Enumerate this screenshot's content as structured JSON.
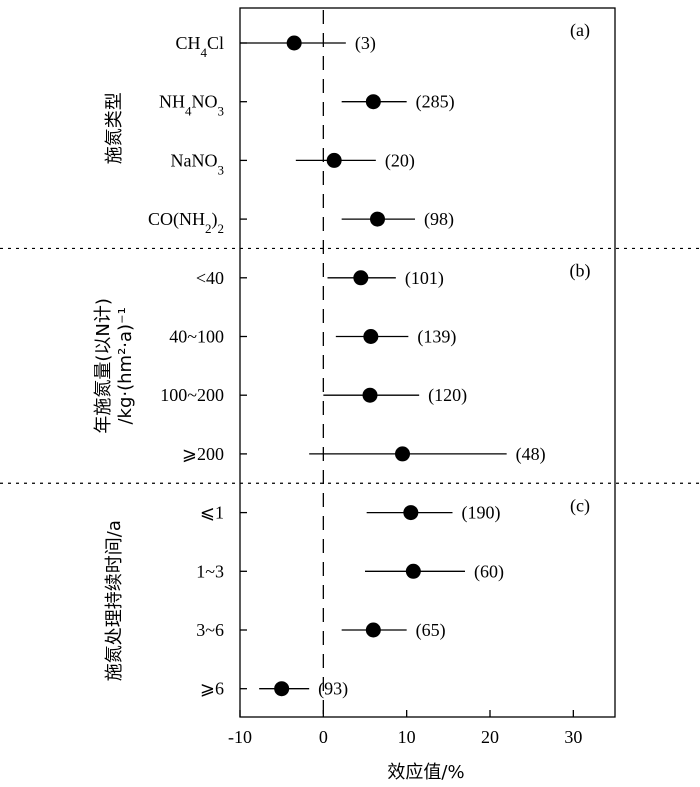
{
  "chart_data": {
    "type": "forest",
    "xlabel": "效应值/%",
    "xlim": [
      -10,
      35
    ],
    "xticks": [
      -10,
      0,
      10,
      20,
      30
    ],
    "reference_line": 0,
    "panels": [
      {
        "tag": "(a)",
        "group_label": "施氮类型",
        "group_label_lines": [
          "施氮类型"
        ],
        "rows": [
          {
            "label": "CH4Cl",
            "mean": -3.5,
            "low": -10,
            "high": 2.7,
            "n": "(3)"
          },
          {
            "label": "NH4NO3",
            "mean": 6.0,
            "low": 2.2,
            "high": 10.0,
            "n": "(285)"
          },
          {
            "label": "NaNO3",
            "mean": 1.3,
            "low": -3.3,
            "high": 6.3,
            "n": "(20)"
          },
          {
            "label": "CO(NH2)2",
            "mean": 6.5,
            "low": 2.2,
            "high": 11.0,
            "n": "(98)"
          }
        ]
      },
      {
        "tag": "(b)",
        "group_label": "年施氮量(以N计)/kg·(hm²·a)⁻¹",
        "group_label_lines": [
          "年施氮量(以N计)",
          "/kg·(hm²·a)⁻¹"
        ],
        "rows": [
          {
            "label": "<40",
            "mean": 4.5,
            "low": 0.5,
            "high": 8.7,
            "n": "(101)"
          },
          {
            "label": "40~100",
            "mean": 5.7,
            "low": 1.5,
            "high": 10.2,
            "n": "(139)"
          },
          {
            "label": "100~200",
            "mean": 5.6,
            "low": 0.0,
            "high": 11.5,
            "n": "(120)"
          },
          {
            "label": "⩾200",
            "mean": 9.5,
            "low": -1.7,
            "high": 22.0,
            "n": "(48)"
          }
        ]
      },
      {
        "tag": "(c)",
        "group_label": "施氮处理持续时间/a",
        "group_label_lines": [
          "施氮处理持续时间/a"
        ],
        "rows": [
          {
            "label": "⩽1",
            "mean": 10.5,
            "low": 5.2,
            "high": 15.5,
            "n": "(190)"
          },
          {
            "label": "1~3",
            "mean": 10.8,
            "low": 5.0,
            "high": 17.0,
            "n": "(60)"
          },
          {
            "label": "3~6",
            "mean": 6.0,
            "low": 2.2,
            "high": 10.0,
            "n": "(65)"
          },
          {
            "label": "⩾6",
            "mean": -5.0,
            "low": -7.7,
            "high": -1.7,
            "n": "(93)"
          }
        ]
      }
    ],
    "colors": {
      "marker": "#000000",
      "line": "#000000"
    }
  }
}
